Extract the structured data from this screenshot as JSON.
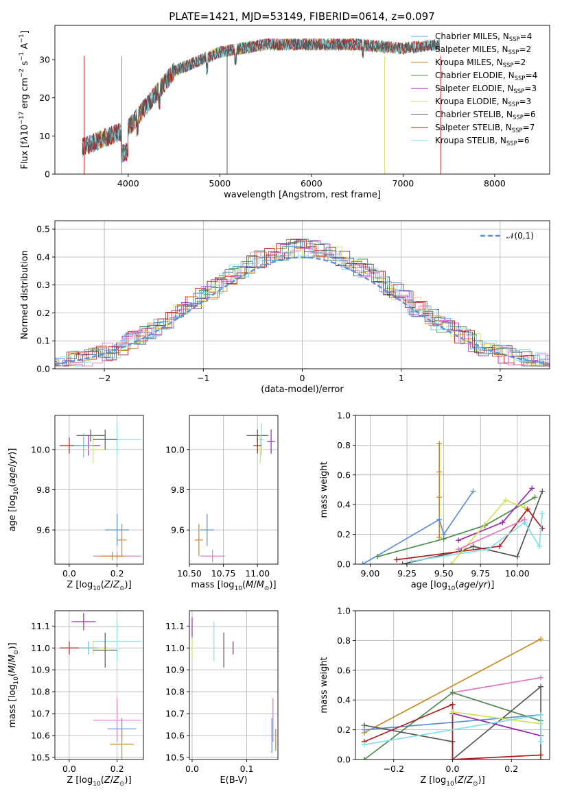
{
  "figure_title": "PLATE=1421, MJD=53149, FIBERID=0614, z=0.097",
  "colors": [
    "#5bbcd6",
    "#d62728",
    "#c88a1e",
    "#4c8c4c",
    "#9b27b0",
    "#d4e157",
    "#555555",
    "#b01c1c",
    "#80deea"
  ],
  "chart_data": [
    {
      "id": "spectrum",
      "type": "line",
      "title": "PLATE=1421, MJD=53149, FIBERID=0614, z=0.097",
      "xlabel": "wavelength [Angstrom, rest frame]",
      "ylabel": "Flux [f_λ10^-17 erg cm^-2 s^-1 A^-1]",
      "xlim": [
        3200,
        8600
      ],
      "ylim": [
        0,
        39
      ],
      "xticks": [
        4000,
        5000,
        6000,
        7000,
        8000
      ],
      "yticks": [
        0,
        10,
        20,
        30
      ],
      "grid": false,
      "legend": "top-right",
      "series": [
        {
          "name": "Chabrier MILES, N_SSP=4",
          "color": "#5bbcd6",
          "x": [
            3500,
            4000,
            4500,
            5000,
            5500,
            6000,
            6500,
            7000,
            7400
          ],
          "y": [
            7,
            12,
            27,
            32,
            34,
            34,
            34,
            33,
            34
          ]
        },
        {
          "name": "Salpeter MILES, N_SSP=2",
          "color": "#d62728",
          "x": [
            3500,
            4000,
            4500,
            5000,
            5500,
            6000,
            6500,
            7000,
            7400
          ],
          "y": [
            7,
            12,
            27,
            32,
            34,
            34,
            34,
            33,
            34
          ]
        },
        {
          "name": "Kroupa MILES, N_SSP=2",
          "color": "#c88a1e",
          "x": [
            3500,
            4000,
            4500,
            5000,
            5500,
            6000,
            6500,
            7000,
            7400
          ],
          "y": [
            7,
            12,
            27,
            32,
            34,
            34,
            34,
            33,
            34
          ]
        },
        {
          "name": "Chabrier ELODIE, N_SSP=4",
          "color": "#4c8c4c",
          "x": [
            3500,
            4000,
            4500,
            5000,
            5500,
            6000,
            6500,
            6800
          ],
          "y": [
            7,
            12,
            27,
            32,
            34,
            34,
            34,
            33
          ]
        },
        {
          "name": "Salpeter ELODIE, N_SSP=3",
          "color": "#9b27b0",
          "x": [
            3500,
            4000,
            4500,
            5000,
            5500,
            6000,
            6500,
            6800
          ],
          "y": [
            7,
            12,
            27,
            32,
            34,
            34,
            34,
            33
          ]
        },
        {
          "name": "Kroupa ELODIE, N_SSP=3",
          "color": "#d4e157",
          "x": [
            3500,
            4000,
            4500,
            5000,
            5500,
            6000,
            6500,
            6800
          ],
          "y": [
            7,
            12,
            27,
            32,
            34,
            34,
            34,
            33
          ]
        },
        {
          "name": "Chabrier STELIB, N_SSP=6",
          "color": "#555555",
          "x": [
            3500,
            4000,
            4500,
            5000,
            5500,
            6000,
            6500,
            7000,
            7400
          ],
          "y": [
            7,
            12,
            27,
            32,
            34,
            34,
            34,
            33,
            34
          ]
        },
        {
          "name": "Salpeter STELIB, N_SSP=7",
          "color": "#b01c1c",
          "x": [
            3500,
            4000,
            4500,
            5000,
            5500,
            6000,
            6500,
            7000,
            7400
          ],
          "y": [
            7,
            12,
            27,
            32,
            34,
            34,
            34,
            33,
            34
          ]
        },
        {
          "name": "Kroupa STELIB, N_SSP=6",
          "color": "#80deea",
          "x": [
            3500,
            4000,
            4500,
            5000,
            5500,
            6000,
            6500,
            7000,
            7400
          ],
          "y": [
            7,
            12,
            27,
            32,
            34,
            34,
            34,
            33,
            34
          ]
        }
      ]
    },
    {
      "id": "residuals",
      "type": "line",
      "xlabel": "(data-model)/error",
      "ylabel": "Normed distribution",
      "xlim": [
        -2.5,
        2.5
      ],
      "ylim": [
        0,
        0.53
      ],
      "xticks": [
        -2,
        -1,
        0,
        1,
        2
      ],
      "yticks": [
        0.0,
        0.1,
        0.2,
        0.3,
        0.4,
        0.5
      ],
      "grid": true,
      "legend": "top-right",
      "gaussian": {
        "name": "𝒩(0,1)",
        "color": "#5b8fd9",
        "mean": 0,
        "sigma": 1
      },
      "hist_centers": [
        -2.5,
        -2.0,
        -1.5,
        -1.0,
        -0.5,
        0.0,
        0.5,
        1.0,
        1.5,
        2.0,
        2.5
      ],
      "hist_values": [
        0.03,
        0.06,
        0.14,
        0.24,
        0.35,
        0.44,
        0.36,
        0.24,
        0.13,
        0.06,
        0.02
      ]
    },
    {
      "id": "age_vs_Z",
      "type": "scatter",
      "xlabel": "Z [log10(Z/Z⊙)]",
      "ylabel": "age [log10(age/yr)]",
      "xlim": [
        -0.06,
        0.31
      ],
      "ylim": [
        9.43,
        10.17
      ],
      "xticks": [
        0.0,
        0.2
      ],
      "yticks": [
        9.6,
        9.8,
        10.0
      ],
      "grid": true,
      "points": [
        {
          "x": 0.2,
          "y": 10.05,
          "xerr": 0.1,
          "yerr": 0.08,
          "color": "#80deea"
        },
        {
          "x": 0.09,
          "y": 10.07,
          "xerr": 0.06,
          "yerr": 0.03,
          "color": "#555555"
        },
        {
          "x": 0.08,
          "y": 10.02,
          "xerr": 0.05,
          "yerr": 0.05,
          "color": "#9b27b0"
        },
        {
          "x": 0.1,
          "y": 10.0,
          "xerr": 0.05,
          "yerr": 0.07,
          "color": "#d4e157"
        },
        {
          "x": 0.0,
          "y": 10.02,
          "xerr": 0.04,
          "yerr": 0.04,
          "color": "#b01c1c"
        },
        {
          "x": 0.06,
          "y": 10.02,
          "xerr": 0.04,
          "yerr": 0.06,
          "color": "#5bbcd6"
        },
        {
          "x": 0.15,
          "y": 10.05,
          "xerr": 0.05,
          "yerr": 0.05,
          "color": "#555555"
        },
        {
          "x": 0.2,
          "y": 9.6,
          "xerr": 0.05,
          "yerr": 0.08,
          "color": "#5b8fd9"
        },
        {
          "x": 0.22,
          "y": 9.55,
          "xerr": 0.02,
          "yerr": 0.08,
          "color": "#c88a1e"
        },
        {
          "x": 0.2,
          "y": 9.47,
          "xerr": 0.1,
          "yerr": 0.02,
          "color": "#e377c2"
        },
        {
          "x": 0.18,
          "y": 9.47,
          "xerr": 0.05,
          "yerr": 0.02,
          "color": "#c88a1e"
        }
      ]
    },
    {
      "id": "age_vs_mass",
      "type": "scatter",
      "xlabel": "mass [log10(M/M⊙)]",
      "ylabel": "",
      "xlim": [
        10.5,
        11.15
      ],
      "ylim": [
        9.43,
        10.17
      ],
      "xticks": [
        10.5,
        10.75,
        11.0
      ],
      "yticks": [
        9.6,
        9.8,
        10.0
      ],
      "grid": true,
      "points": [
        {
          "x": 11.0,
          "y": 10.07,
          "xerr": 0.08,
          "yerr": 0.03,
          "color": "#555555"
        },
        {
          "x": 11.1,
          "y": 10.04,
          "xerr": 0.03,
          "yerr": 0.06,
          "color": "#9b27b0"
        },
        {
          "x": 11.02,
          "y": 10.0,
          "xerr": 0.03,
          "yerr": 0.07,
          "color": "#d4e157"
        },
        {
          "x": 11.0,
          "y": 10.02,
          "xerr": 0.03,
          "yerr": 0.04,
          "color": "#b01c1c"
        },
        {
          "x": 11.03,
          "y": 10.05,
          "xerr": 0.02,
          "yerr": 0.08,
          "color": "#80deea"
        },
        {
          "x": 10.63,
          "y": 9.6,
          "xerr": 0.05,
          "yerr": 0.08,
          "color": "#5b8fd9"
        },
        {
          "x": 10.57,
          "y": 9.55,
          "xerr": 0.03,
          "yerr": 0.08,
          "color": "#c88a1e"
        },
        {
          "x": 10.67,
          "y": 9.47,
          "xerr": 0.09,
          "yerr": 0.03,
          "color": "#e377c2"
        }
      ]
    },
    {
      "id": "weight_vs_age",
      "type": "line",
      "xlabel": "age [log10(age/yr)]",
      "ylabel": "mass weight",
      "xlim": [
        8.9,
        10.22
      ],
      "ylim": [
        0,
        1.0
      ],
      "xticks": [
        9.0,
        9.25,
        9.5,
        9.75,
        10.0
      ],
      "yticks": [
        0.0,
        0.2,
        0.4,
        0.6,
        0.8,
        1.0
      ],
      "grid": true,
      "series": [
        {
          "color": "#c88a1e",
          "x": [
            9.47,
            9.47,
            9.47,
            9.47,
            9.47
          ],
          "y": [
            0.81,
            0.62,
            0.45,
            0.3,
            0.18
          ]
        },
        {
          "color": "#5b8fd9",
          "x": [
            8.95,
            9.47,
            9.5,
            9.7
          ],
          "y": [
            0.0,
            0.3,
            0.2,
            0.49
          ]
        },
        {
          "color": "#4c8c4c",
          "x": [
            9.05,
            9.5,
            9.78,
            10.12
          ],
          "y": [
            0.05,
            0.17,
            0.26,
            0.45
          ]
        },
        {
          "color": "#555555",
          "x": [
            9.22,
            9.62,
            9.7,
            10.0,
            10.17
          ],
          "y": [
            0.0,
            0.09,
            0.12,
            0.05,
            0.49
          ]
        },
        {
          "color": "#b01c1c",
          "x": [
            9.18,
            9.88,
            10.07,
            10.17
          ],
          "y": [
            0.03,
            0.12,
            0.37,
            0.24
          ]
        },
        {
          "color": "#9b27b0",
          "x": [
            9.6,
            9.9,
            10.1
          ],
          "y": [
            0.16,
            0.28,
            0.51
          ]
        },
        {
          "color": "#80deea",
          "x": [
            9.28,
            9.8,
            10.05,
            10.15,
            10.17
          ],
          "y": [
            0.02,
            0.1,
            0.28,
            0.12,
            0.34
          ]
        },
        {
          "color": "#d4e157",
          "x": [
            9.55,
            9.92,
            10.05
          ],
          "y": [
            0.0,
            0.43,
            0.38
          ]
        },
        {
          "color": "#e377c2",
          "x": [
            9.6,
            10.05
          ],
          "y": [
            0.1,
            0.3
          ]
        }
      ]
    },
    {
      "id": "mass_vs_Z",
      "type": "scatter",
      "xlabel": "Z [log10(Z/Z⊙)]",
      "ylabel": "mass [log10(M/M⊙)]",
      "xlim": [
        -0.06,
        0.31
      ],
      "ylim": [
        10.49,
        11.17
      ],
      "xticks": [
        0.0,
        0.2
      ],
      "yticks": [
        10.5,
        10.6,
        10.7,
        10.8,
        10.9,
        11.0,
        11.1
      ],
      "grid": true,
      "points": [
        {
          "x": 0.06,
          "y": 11.12,
          "xerr": 0.05,
          "yerr": 0.04,
          "color": "#9b27b0"
        },
        {
          "x": 0.2,
          "y": 11.03,
          "xerr": 0.1,
          "yerr": 0.09,
          "color": "#80deea"
        },
        {
          "x": 0.1,
          "y": 11.0,
          "xerr": 0.07,
          "yerr": 0.03,
          "color": "#d4e157"
        },
        {
          "x": 0.0,
          "y": 11.0,
          "xerr": 0.04,
          "yerr": 0.03,
          "color": "#b01c1c"
        },
        {
          "x": 0.08,
          "y": 11.0,
          "xerr": 0.04,
          "yerr": 0.03,
          "color": "#5bbcd6"
        },
        {
          "x": 0.15,
          "y": 10.99,
          "xerr": 0.05,
          "yerr": 0.08,
          "color": "#555555"
        },
        {
          "x": 0.2,
          "y": 10.67,
          "xerr": 0.1,
          "yerr": 0.1,
          "color": "#e377c2"
        },
        {
          "x": 0.22,
          "y": 10.63,
          "xerr": 0.06,
          "yerr": 0.05,
          "color": "#5b8fd9"
        },
        {
          "x": 0.22,
          "y": 10.56,
          "xerr": 0.05,
          "yerr": 0.07,
          "color": "#c88a1e"
        }
      ]
    },
    {
      "id": "mass_vs_EBV",
      "type": "scatter",
      "xlabel": "E(B-V)",
      "ylabel": "",
      "xlim": [
        -0.005,
        0.157
      ],
      "ylim": [
        10.49,
        11.17
      ],
      "xticks": [
        0.0,
        0.1
      ],
      "yticks": [
        10.5,
        10.6,
        10.7,
        10.8,
        10.9,
        11.0,
        11.1
      ],
      "grid": true,
      "points": [
        {
          "x": 0.0,
          "y": 11.09,
          "xerr": 0.0,
          "yerr": 0.05,
          "color": "#9b27b0"
        },
        {
          "x": 0.0,
          "y": 11.0,
          "xerr": 0.0,
          "yerr": 0.05,
          "color": "#d4e157"
        },
        {
          "x": 0.04,
          "y": 11.03,
          "xerr": 0.0,
          "yerr": 0.09,
          "color": "#80deea"
        },
        {
          "x": 0.058,
          "y": 10.99,
          "xerr": 0.0,
          "yerr": 0.08,
          "color": "#555555"
        },
        {
          "x": 0.075,
          "y": 11.0,
          "xerr": 0.0,
          "yerr": 0.03,
          "color": "#b01c1c"
        },
        {
          "x": 0.148,
          "y": 10.67,
          "xerr": 0.0,
          "yerr": 0.1,
          "color": "#e377c2"
        },
        {
          "x": 0.146,
          "y": 10.6,
          "xerr": 0.0,
          "yerr": 0.08,
          "color": "#5b8fd9"
        },
        {
          "x": 0.153,
          "y": 10.58,
          "xerr": 0.0,
          "yerr": 0.05,
          "color": "#c88a1e"
        }
      ]
    },
    {
      "id": "weight_vs_Z",
      "type": "line",
      "xlabel": "Z [log10(Z/Z⊙)]",
      "ylabel": "mass weight",
      "xlim": [
        -0.33,
        0.33
      ],
      "ylim": [
        0,
        1.0
      ],
      "xticks": [
        -0.2,
        0.0,
        0.2
      ],
      "yticks": [
        0.0,
        0.2,
        0.4,
        0.6,
        0.8,
        1.0
      ],
      "grid": true,
      "series": [
        {
          "color": "#c88a1e",
          "x": [
            -0.3,
            0.3
          ],
          "y": [
            0.18,
            0.81
          ]
        },
        {
          "color": "#e377c2",
          "x": [
            0.0,
            0.3
          ],
          "y": [
            0.45,
            0.55
          ]
        },
        {
          "color": "#5b8fd9",
          "x": [
            -0.3,
            0.0,
            0.3
          ],
          "y": [
            0.2,
            0.25,
            0.3
          ]
        },
        {
          "color": "#4c8c4c",
          "x": [
            -0.3,
            0.0,
            0.3
          ],
          "y": [
            0.0,
            0.45,
            0.26
          ]
        },
        {
          "color": "#555555",
          "x": [
            -0.3,
            0.0,
            0.0,
            0.3,
            0.3
          ],
          "y": [
            0.23,
            0.12,
            0.0,
            0.49,
            0.0
          ]
        },
        {
          "color": "#b01c1c",
          "x": [
            -0.3,
            0.0,
            0.0,
            0.3
          ],
          "y": [
            0.12,
            0.37,
            0.0,
            0.03
          ]
        },
        {
          "color": "#9b27b0",
          "x": [
            0.0,
            0.3
          ],
          "y": [
            0.31,
            0.16
          ]
        },
        {
          "color": "#d4e157",
          "x": [
            0.0,
            0.3
          ],
          "y": [
            0.32,
            0.24
          ]
        },
        {
          "color": "#80deea",
          "x": [
            -0.3,
            0.3,
            0.3
          ],
          "y": [
            0.1,
            0.3,
            0.12
          ]
        }
      ]
    }
  ],
  "panel_labels": {
    "flux_ylabel_html": "Flux [f<tspan font-style='italic'>λ</tspan>10<tspan dy='-6' font-size='9'>−17</tspan><tspan dy='6'> erg cm</tspan><tspan dy='-6' font-size='9'>−2</tspan><tspan dy='6'> s</tspan><tspan dy='-6' font-size='9'>−1</tspan><tspan dy='6'> A</tspan><tspan dy='-6' font-size='9'>−1</tspan><tspan dy='6'>]</tspan>"
  }
}
